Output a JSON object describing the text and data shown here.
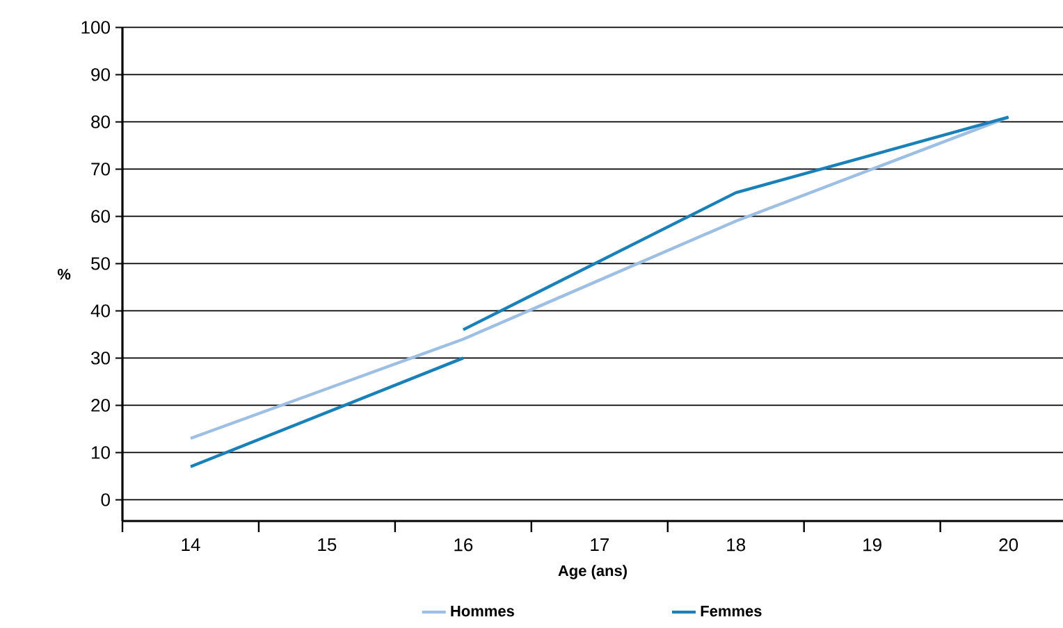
{
  "chart_data": {
    "type": "line",
    "xlabel": "Age (ans)",
    "ylabel": "%",
    "xlim": [
      13.5,
      20.4
    ],
    "xticks": [
      14,
      15,
      16,
      17,
      18,
      19,
      20,
      {
        "value": 13.5,
        "label": null
      },
      {
        "value": 14.5,
        "label": null
      },
      {
        "value": 15.5,
        "label": null
      },
      {
        "value": 16.5,
        "label": null
      },
      {
        "value": 17.5,
        "label": null
      },
      {
        "value": 18.5,
        "label": null
      },
      {
        "value": 19.5,
        "label": null
      }
    ],
    "ylim": [
      -4.5,
      100
    ],
    "yticks": [
      0,
      10,
      20,
      30,
      40,
      50,
      60,
      70,
      80,
      90,
      100
    ],
    "grid": "y",
    "legend": "bottom",
    "marker": "none",
    "line_style": "solid",
    "series": [
      {
        "name": "Hommes",
        "color": "#9dbfe3",
        "x": [
          14,
          16,
          18,
          20
        ],
        "values": [
          13,
          34,
          59,
          81
        ]
      },
      {
        "name": "Femmes",
        "color": "#1a80b8",
        "x": [
          14,
          16
        ],
        "values": [
          7,
          30
        ]
      },
      {
        "color": "#1a80b8",
        "x": [
          16,
          18,
          20
        ],
        "values": [
          36,
          65,
          81
        ]
      }
    ]
  }
}
